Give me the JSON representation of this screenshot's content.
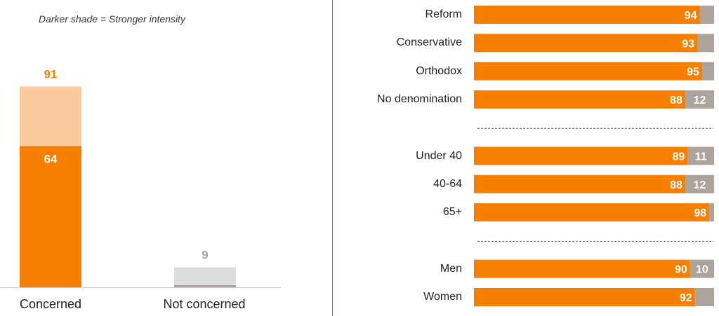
{
  "note": "Darker shade = Stronger intensity",
  "colors": {
    "orange": "#F77F00",
    "light_orange": "#FBCB9E",
    "gray": "#ABA49C",
    "light_gray": "#DCDCDC",
    "gray_label": "#ABA49C"
  },
  "chart_data": [
    {
      "type": "bar",
      "categories": [
        "Concerned",
        "Not concerned"
      ],
      "series": [
        {
          "values": [
            64,
            1
          ]
        },
        {
          "values": [
            27,
            8
          ]
        }
      ],
      "totals": [
        91,
        9
      ],
      "ylim": [
        0,
        100
      ],
      "xlabel": "",
      "ylabel": "",
      "title": ""
    },
    {
      "type": "bar",
      "orientation": "horizontal",
      "stacked": true,
      "groups": [
        {
          "rows": [
            {
              "label": "Reform",
              "a": 94,
              "b": 6,
              "show_b": false
            },
            {
              "label": "Conservative",
              "a": 93,
              "b": 7,
              "show_b": false
            },
            {
              "label": "Orthodox",
              "a": 95,
              "b": 5,
              "show_b": false
            },
            {
              "label": "No denomination",
              "a": 88,
              "b": 12,
              "show_b": true
            }
          ]
        },
        {
          "rows": [
            {
              "label": "Under 40",
              "a": 89,
              "b": 11,
              "show_b": true
            },
            {
              "label": "40-64",
              "a": 88,
              "b": 12,
              "show_b": true
            },
            {
              "label": "65+",
              "a": 98,
              "b": 2,
              "show_b": false
            }
          ]
        },
        {
          "rows": [
            {
              "label": "Men",
              "a": 90,
              "b": 10,
              "show_b": true
            },
            {
              "label": "Women",
              "a": 92,
              "b": 8,
              "show_b": false
            }
          ]
        }
      ],
      "xlim": [
        0,
        100
      ],
      "xlabel": "",
      "ylabel": "",
      "title": ""
    }
  ]
}
